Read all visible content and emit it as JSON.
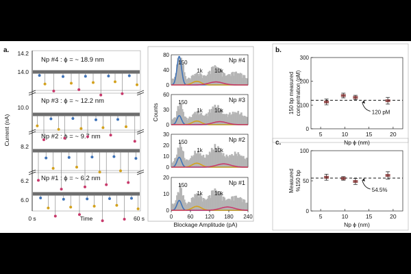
{
  "panels": {
    "a_label": "a.",
    "b_label": "b.",
    "c_label": "c."
  },
  "traces": {
    "ylabel": "Current (nA)",
    "xlabel": "Time",
    "x_start": "0 s",
    "x_end": "60 s",
    "rows": [
      {
        "title": "Np #4 : ϕ = ~ 18.9 nm",
        "ticks": [
          "14.2",
          "14.0"
        ]
      },
      {
        "title": "Np #3 : ϕ = ~ 12.2 nm",
        "ticks": [
          "10.0"
        ]
      },
      {
        "title": "Np #2 : ϕ = ~ 9.7 nm",
        "ticks": [
          "8.2"
        ]
      },
      {
        "title": "Np #1 : ϕ = ~ 6.2 nm",
        "ticks": [
          "6.2",
          "6.0"
        ]
      }
    ]
  },
  "histograms": {
    "ylabel": "Counts",
    "xlabel": "Blockage Amplitude (pA)",
    "xticks": [
      "0",
      "60",
      "120",
      "180",
      "240"
    ],
    "rows": [
      {
        "name": "Np #4",
        "yticks": [
          "80",
          "40",
          "0"
        ],
        "labels": [
          "150",
          "1k",
          "10k"
        ]
      },
      {
        "name": "Np #3",
        "yticks": [
          "60",
          "30",
          "0"
        ],
        "labels": [
          "150",
          "1k",
          "10k"
        ]
      },
      {
        "name": "Np #2",
        "yticks": [
          "30",
          "20",
          "10",
          "0"
        ],
        "labels": [
          "150",
          "1k",
          "10k"
        ]
      },
      {
        "name": "Np #1",
        "yticks": [
          "20",
          "10",
          "0"
        ],
        "labels": [
          "150",
          "1k",
          "10k"
        ]
      }
    ]
  },
  "chart_data": [
    {
      "type": "scatter",
      "panel": "b",
      "xlabel": "Np ϕ (nm)",
      "ylabel_lines": [
        "150 bp measured",
        "concentration (pM)"
      ],
      "xlim": [
        3,
        22
      ],
      "ylim": [
        0,
        300
      ],
      "xticks": [
        "5",
        "10",
        "15",
        "20"
      ],
      "yticks": [
        "300",
        "200",
        "100",
        "0"
      ],
      "x": [
        6.2,
        9.7,
        12.2,
        18.9
      ],
      "y": [
        113,
        140,
        132,
        118
      ],
      "yerr": [
        12,
        10,
        9,
        14
      ],
      "reference_line": {
        "y": 120,
        "label": "120 pM"
      }
    },
    {
      "type": "scatter",
      "panel": "c",
      "xlabel": "Np ϕ (nm)",
      "ylabel_lines": [
        "Measured",
        "%150 bp"
      ],
      "xlim": [
        3,
        22
      ],
      "ylim": [
        0,
        100
      ],
      "xticks": [
        "5",
        "10",
        "15",
        "20"
      ],
      "yticks": [
        "100",
        "50",
        "0"
      ],
      "x": [
        6.2,
        9.7,
        12.2,
        18.9
      ],
      "y": [
        56,
        54,
        49,
        59
      ],
      "yerr": [
        5,
        3,
        5,
        6
      ],
      "reference_line": {
        "y": 54.5,
        "label": "54.5%"
      }
    }
  ],
  "colors": {
    "blue": "#3f73b8",
    "gold": "#d4a21d",
    "pink": "#c8396b",
    "gray": "#b5b5b5",
    "trace": "#555555",
    "marker": "#7a1f1f"
  }
}
